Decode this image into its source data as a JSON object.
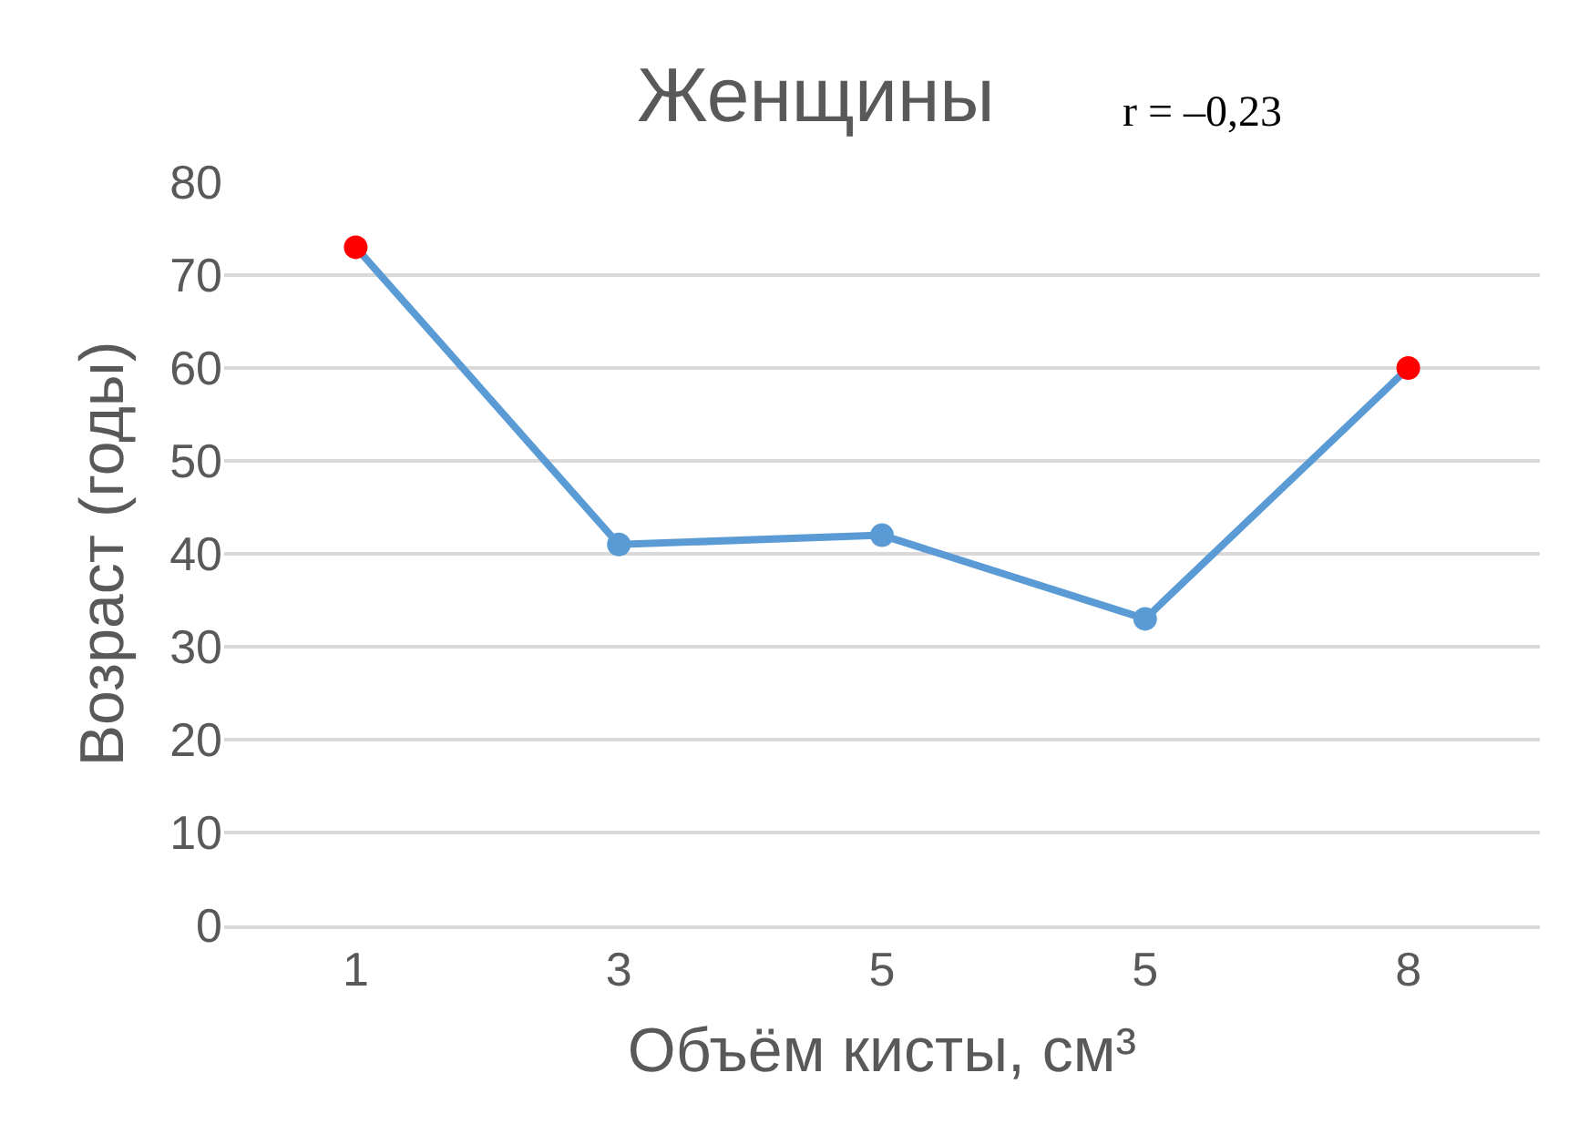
{
  "chart_data": {
    "type": "line",
    "title": "Женщины",
    "annotations": [
      "r = –0,23"
    ],
    "xlabel": "Объём кисты, см³",
    "ylabel": "Возраст (годы)",
    "categories": [
      "1",
      "3",
      "5",
      "5",
      "8"
    ],
    "series": [
      {
        "color": "#5b9bd5",
        "colors": [
          "#ff0000",
          "#5b9bd5",
          "#5b9bd5",
          "#5b9bd5",
          "#ff0000"
        ],
        "values": [
          73,
          41,
          42,
          33,
          60
        ]
      }
    ],
    "ylim": [
      0,
      80
    ],
    "yticks": [
      0,
      10,
      20,
      30,
      40,
      50,
      60,
      70,
      80
    ],
    "grid": "y",
    "marker": "circle",
    "line_style": "solid"
  }
}
